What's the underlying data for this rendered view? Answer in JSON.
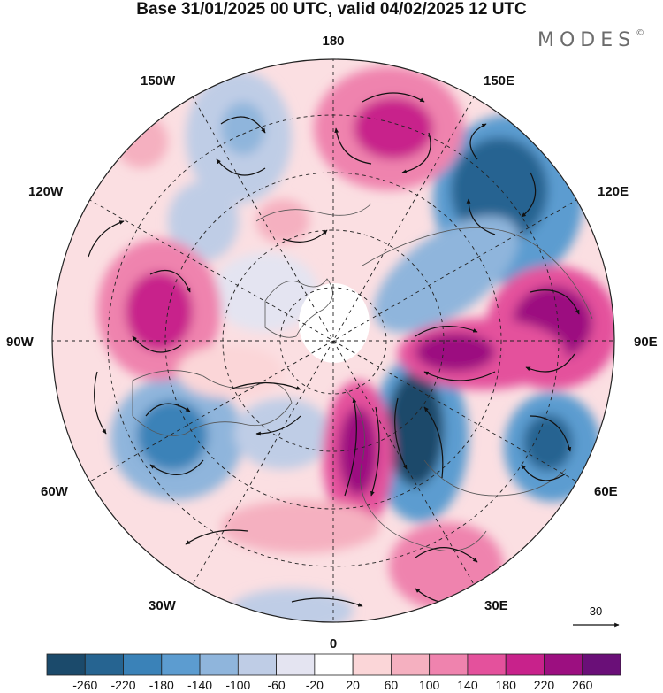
{
  "title": "Base 31/01/2025 00 UTC, valid 04/02/2025 12 UTC",
  "brand": "MODES",
  "brand_mark": "©",
  "longitude_labels": {
    "top": "180",
    "bottom": "0",
    "left": "90W",
    "right": "90E",
    "upper_left": "150W",
    "upper_right": "150E",
    "left_upper": "120W",
    "right_upper": "120E",
    "left_lower": "60W",
    "right_lower": "60E",
    "lower_left": "30W",
    "lower_right": "30E"
  },
  "reference_vector": {
    "value": "30"
  },
  "colorbar": {
    "colors": [
      "#1b4a6b",
      "#266491",
      "#3a82b8",
      "#5c9cd0",
      "#8fb5dc",
      "#bfcde6",
      "#e4e4f1",
      "#ffffff",
      "#fbd6d8",
      "#f5b0c0",
      "#ef83ae",
      "#e4519c",
      "#c8228b",
      "#9c0f80",
      "#6a0f78"
    ],
    "ticks": [
      "-260",
      "-220",
      "-180",
      "-140",
      "-100",
      "-60",
      "-20",
      "20",
      "60",
      "100",
      "140",
      "180",
      "220",
      "260"
    ]
  },
  "anomaly_centers": [
    {
      "sign": "+",
      "level": 260,
      "lon_label": "90E sector"
    },
    {
      "sign": "+",
      "level": 240,
      "lon_label": "90E-60E sector"
    },
    {
      "sign": "+",
      "level": 220,
      "lon_label": "150E sector"
    },
    {
      "sign": "+",
      "level": 200,
      "lon_label": "90W sector"
    },
    {
      "sign": "+",
      "level": 220,
      "lon_label": "0-30E sector"
    },
    {
      "sign": "+",
      "level": 140,
      "lon_label": "30E sector"
    },
    {
      "sign": "-",
      "level": -260,
      "lon_label": "120E sector"
    },
    {
      "sign": "-",
      "level": -260,
      "lon_label": "30E-60E sector"
    },
    {
      "sign": "-",
      "level": -200,
      "lon_label": "60E sector"
    },
    {
      "sign": "-",
      "level": -180,
      "lon_label": "60W sector"
    },
    {
      "sign": "-",
      "level": -120,
      "lon_label": "150W sector"
    }
  ]
}
